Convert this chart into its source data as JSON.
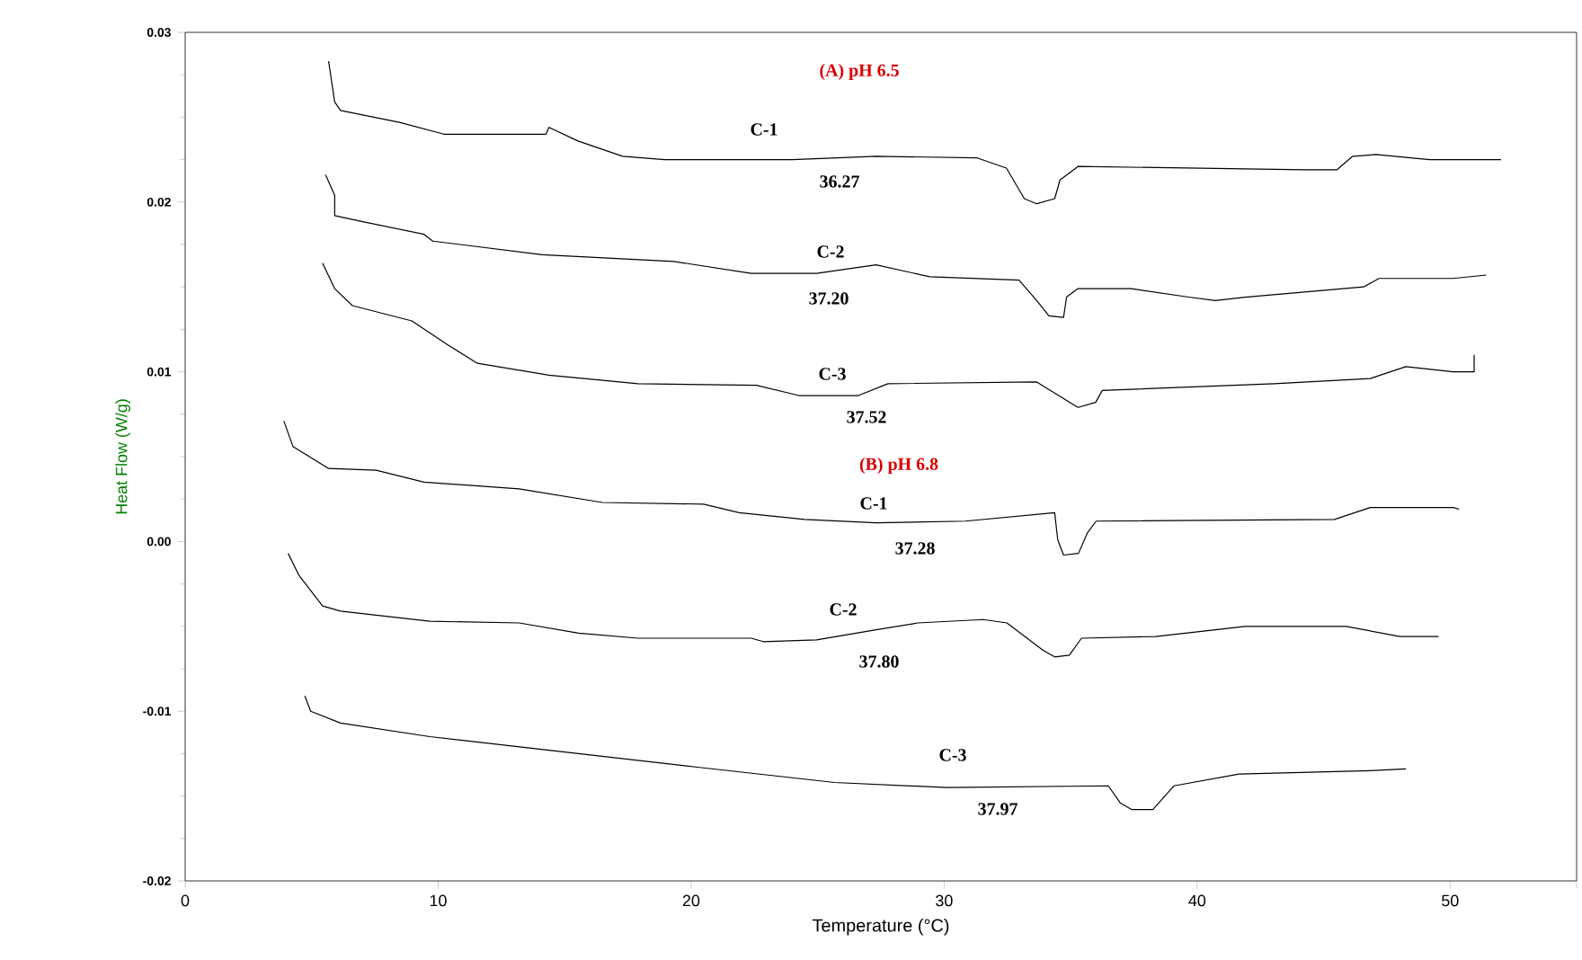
{
  "chart_data": {
    "type": "line",
    "xlabel": "Temperature (°C)",
    "ylabel": "Heat Flow (W/g)",
    "xlim": [
      0,
      55
    ],
    "ylim": [
      -0.02,
      0.03
    ],
    "xticks": [
      0,
      10,
      20,
      30,
      40,
      50,
      {
        "value": 55,
        "label": null
      }
    ],
    "yticks": [
      {
        "value": -0.02,
        "label": "-0.02"
      },
      {
        "value": -0.01,
        "label": "-0.01"
      },
      {
        "value": 0,
        "label": "0.00"
      },
      {
        "value": 0.01,
        "label": "0.01"
      },
      {
        "value": 0.02,
        "label": "0.02"
      },
      {
        "value": 0.03,
        "label": "0.03"
      }
    ],
    "series": [
      {
        "color": "#000000",
        "x": [
          5.67,
          5.91,
          6.14,
          8.47,
          10.23,
          14.26,
          14.38,
          15.53,
          17.29,
          18.96,
          23.99,
          27.31,
          31.31,
          32.46,
          33.17,
          33.66,
          34.37,
          34.58,
          35.29,
          44.25,
          45.52,
          46.15,
          47.07,
          49.19,
          52.01
        ],
        "values": [
          0.0283,
          0.0259,
          0.0254,
          0.0247,
          0.024,
          0.024,
          0.0244,
          0.0236,
          0.0227,
          0.0225,
          0.0225,
          0.0227,
          0.0226,
          0.022,
          0.0202,
          0.0199,
          0.0202,
          0.0213,
          0.0221,
          0.0219,
          0.0219,
          0.0227,
          0.0228,
          0.0225,
          0.0225
        ]
      },
      {
        "color": "#000000",
        "x": [
          5.55,
          5.91,
          5.91,
          6.85,
          9.44,
          9.79,
          14.11,
          19.32,
          22.37,
          24.96,
          27.31,
          29.43,
          32.96,
          33.66,
          34.14,
          34.72,
          34.84,
          35.29,
          37.4,
          39.66,
          40.72,
          41.9,
          46.58,
          47.19,
          50.11,
          51.43
        ],
        "values": [
          0.0216,
          0.0204,
          0.0192,
          0.0189,
          0.0181,
          0.0177,
          0.0169,
          0.0165,
          0.0158,
          0.0158,
          0.0163,
          0.0156,
          0.0154,
          0.0142,
          0.0133,
          0.0132,
          0.0144,
          0.0149,
          0.0149,
          0.0144,
          0.0142,
          0.0144,
          0.015,
          0.0155,
          0.0155,
          0.0157
        ]
      },
      {
        "color": "#000000",
        "x": [
          5.43,
          5.91,
          6.61,
          8.96,
          10.37,
          11.55,
          14.38,
          17.9,
          22.58,
          24.26,
          26.61,
          27.78,
          33.66,
          35.29,
          35.99,
          36.25,
          43.05,
          46.84,
          48.25,
          50.11,
          50.95,
          50.95
        ],
        "values": [
          0.0164,
          0.0149,
          0.0139,
          0.013,
          0.0116,
          0.0105,
          0.0098,
          0.0093,
          0.0092,
          0.0086,
          0.0086,
          0.0093,
          0.0094,
          0.0079,
          0.0082,
          0.0089,
          0.0093,
          0.0096,
          0.0103,
          0.01,
          0.01,
          0.011
        ]
      },
      {
        "color": "#000000",
        "x": [
          3.9,
          4.26,
          5.67,
          7.55,
          9.44,
          13.2,
          16.49,
          20.49,
          21.9,
          24.49,
          27.31,
          30.84,
          34.37,
          34.49,
          34.72,
          35.31,
          35.66,
          36.01,
          45.43,
          46.84,
          50.13,
          50.36
        ],
        "values": [
          0.0071,
          0.0056,
          0.0043,
          0.0042,
          0.0035,
          0.0031,
          0.0023,
          0.0022,
          0.0017,
          0.0013,
          0.0011,
          0.0012,
          0.0017,
          0.0001,
          -0.0008,
          -0.0007,
          0.0005,
          0.0012,
          0.0013,
          0.002,
          0.002,
          0.0019
        ]
      },
      {
        "color": "#000000",
        "x": [
          4.07,
          4.5,
          5.43,
          6.14,
          9.67,
          13.2,
          15.55,
          17.9,
          22.37,
          22.85,
          24.96,
          27.31,
          28.96,
          31.55,
          32.48,
          33.9,
          34.37,
          34.95,
          35.43,
          38.37,
          41.9,
          45.89,
          48.01,
          49.54
        ],
        "values": [
          -0.0007,
          -0.002,
          -0.0038,
          -0.0041,
          -0.0047,
          -0.0048,
          -0.0054,
          -0.0057,
          -0.0057,
          -0.0059,
          -0.0058,
          -0.0052,
          -0.0048,
          -0.0046,
          -0.0048,
          -0.0064,
          -0.0068,
          -0.0067,
          -0.0057,
          -0.0056,
          -0.005,
          -0.005,
          -0.0056,
          -0.0056
        ]
      },
      {
        "color": "#000000",
        "x": [
          4.73,
          4.96,
          6.14,
          9.67,
          14.38,
          20.25,
          25.67,
          30.13,
          36.49,
          36.96,
          37.42,
          38.25,
          39.08,
          41.66,
          46.84,
          48.25
        ],
        "values": [
          -0.0091,
          -0.01,
          -0.0107,
          -0.0115,
          -0.0123,
          -0.0133,
          -0.0142,
          -0.0145,
          -0.0144,
          -0.0154,
          -0.0158,
          -0.0158,
          -0.0144,
          -0.0137,
          -0.0135,
          -0.0134
        ]
      }
    ],
    "annotations": [
      "(A) pH 6.5",
      "C-1",
      "36.27",
      "C-2",
      "37.20",
      "C-3",
      "37.52",
      "(B) pH 6.8",
      "C-1",
      "37.28",
      "C-2",
      "37.80",
      "C-3",
      "37.97"
    ]
  }
}
